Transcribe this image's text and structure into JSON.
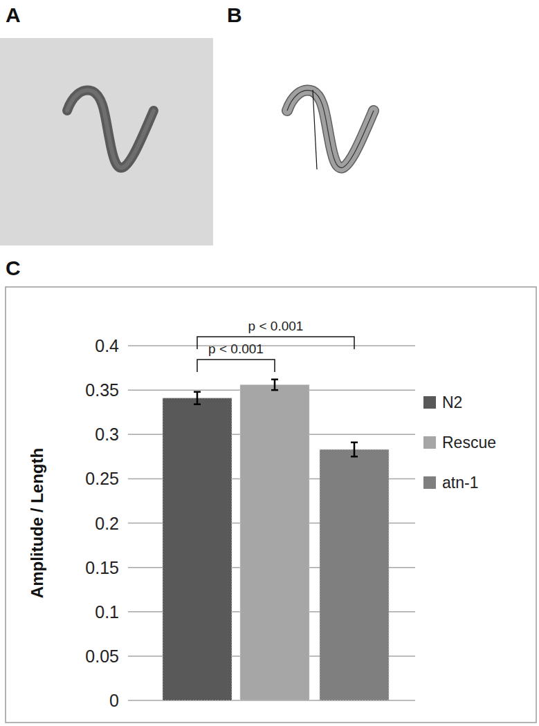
{
  "panels": {
    "labels": [
      "A",
      "B",
      "C"
    ]
  },
  "chart_data": {
    "type": "bar",
    "categories": [
      "N2",
      "Rescue",
      "atn-1"
    ],
    "values": [
      0.341,
      0.356,
      0.283
    ],
    "errors": [
      0.007,
      0.006,
      0.008
    ],
    "colors": [
      "#595959",
      "#a6a6a6",
      "#7f7f7f"
    ],
    "ylabel": "Amplitude / Length",
    "ylim": [
      0,
      0.4
    ],
    "yticks": [
      0,
      0.05,
      0.1,
      0.15,
      0.2,
      0.25,
      0.3,
      0.35,
      0.4
    ],
    "grid": true,
    "legend": "right",
    "tick_labels": "y",
    "annotations": [
      {
        "text": "p < 0.001",
        "categories": [
          "N2",
          "atn-1"
        ]
      },
      {
        "text": "p < 0.001",
        "categories": [
          "N2",
          "Rescue"
        ]
      }
    ]
  }
}
